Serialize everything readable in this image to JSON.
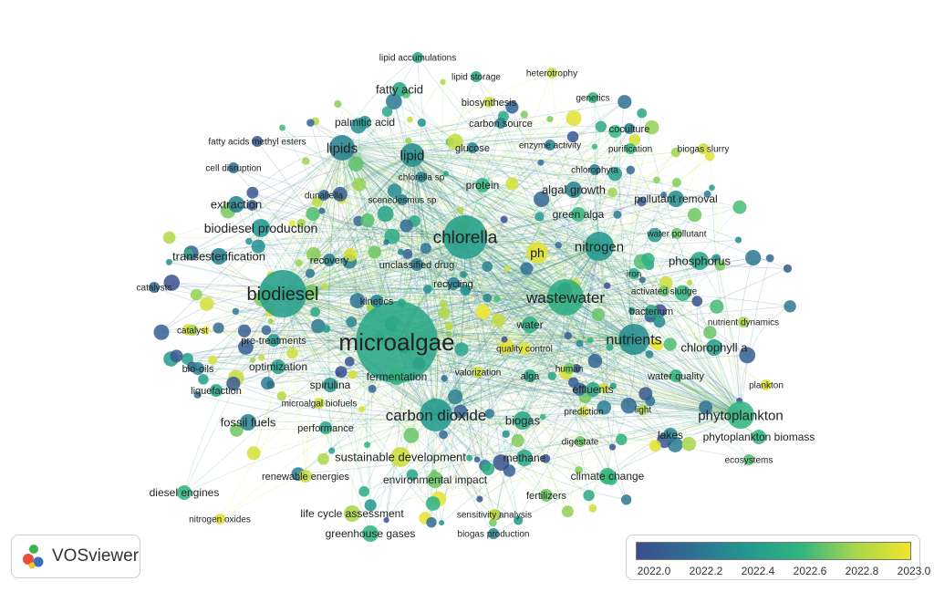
{
  "app": {
    "name": "VOSviewer",
    "logo_icon": "vosviewer-logo-icon"
  },
  "legend": {
    "ticks": [
      "2022.0",
      "2022.2",
      "2022.4",
      "2022.6",
      "2022.8",
      "2023.0"
    ],
    "colors": [
      "#3b4d8f",
      "#2f6e93",
      "#22988f",
      "#31b57f",
      "#a6d64b",
      "#f1e52a"
    ]
  },
  "keywords": [
    {
      "label": "microalgae",
      "year": 2022.5
    },
    {
      "label": "biodiesel",
      "year": 2022.45
    },
    {
      "label": "chlorella",
      "year": 2022.45
    },
    {
      "label": "wastewater",
      "year": 2022.55
    },
    {
      "label": "carbon dioxide",
      "year": 2022.4
    },
    {
      "label": "nutrients",
      "year": 2022.35
    },
    {
      "label": "phytoplankton",
      "year": 2022.6
    },
    {
      "label": "nitrogen",
      "year": 2022.4
    },
    {
      "label": "lipids",
      "year": 2022.3
    },
    {
      "label": "lipid",
      "year": 2022.35
    },
    {
      "label": "biodiesel production",
      "year": 2022.4
    },
    {
      "label": "fatty acid",
      "year": 2022.5
    },
    {
      "label": "palmitic acid",
      "year": 2022.4
    },
    {
      "label": "fatty acids methyl esters",
      "year": 2022.1
    },
    {
      "label": "cell disruption",
      "year": 2022.2
    },
    {
      "label": "extraction",
      "year": 2022.3
    },
    {
      "label": "transesterification",
      "year": 2022.3
    },
    {
      "label": "catalysts",
      "year": 2022.2
    },
    {
      "label": "catalyst",
      "year": 2022.8
    },
    {
      "label": "pre-treatments",
      "year": 2022.4
    },
    {
      "label": "bio-oils",
      "year": 2022.3
    },
    {
      "label": "optimization",
      "year": 2022.45
    },
    {
      "label": "liquefaction",
      "year": 2022.5
    },
    {
      "label": "fossil fuels",
      "year": 2022.3
    },
    {
      "label": "spirulina",
      "year": 2022.4
    },
    {
      "label": "microalgal biofuels",
      "year": 2022.9
    },
    {
      "label": "performance",
      "year": 2022.5
    },
    {
      "label": "fermentation",
      "year": 2022.6
    },
    {
      "label": "biogas",
      "year": 2022.5
    },
    {
      "label": "sustainable development",
      "year": 2022.9
    },
    {
      "label": "renewable energies",
      "year": 2022.9
    },
    {
      "label": "environmental impact",
      "year": 2022.7
    },
    {
      "label": "methane",
      "year": 2022.5
    },
    {
      "label": "diesel engines",
      "year": 2022.6
    },
    {
      "label": "nitrogen oxides",
      "year": 2022.95
    },
    {
      "label": "life cycle assessment",
      "year": 2022.8
    },
    {
      "label": "greenhouse gases",
      "year": 2022.6
    },
    {
      "label": "sensitivity analysis",
      "year": 2022.9
    },
    {
      "label": "biogas production",
      "year": 2022.3
    },
    {
      "label": "fertilizers",
      "year": 2022.7
    },
    {
      "label": "climate change",
      "year": 2022.6
    },
    {
      "label": "digestate",
      "year": 2022.7
    },
    {
      "label": "prediction",
      "year": 2022.9
    },
    {
      "label": "light",
      "year": 2022.8
    },
    {
      "label": "effluents",
      "year": 2022.5
    },
    {
      "label": "human",
      "year": 2022.7
    },
    {
      "label": "alga",
      "year": 2022.5
    },
    {
      "label": "valorization",
      "year": 2022.9
    },
    {
      "label": "quality control",
      "year": 2022.95
    },
    {
      "label": "water",
      "year": 2022.55
    },
    {
      "label": "recycling",
      "year": 2022.3
    },
    {
      "label": "kinetics",
      "year": 2022.3
    },
    {
      "label": "recovery",
      "year": 2022.3
    },
    {
      "label": "unclassified drug",
      "year": 2022.3
    },
    {
      "label": "ph",
      "year": 2022.95
    },
    {
      "label": "dunaliella",
      "year": 2022.2
    },
    {
      "label": "scenedesmus sp",
      "year": 2022.3
    },
    {
      "label": "chlorella sp",
      "year": 2022.3
    },
    {
      "label": "protein",
      "year": 2022.6
    },
    {
      "label": "glucose",
      "year": 2022.3
    },
    {
      "label": "carbon source",
      "year": 2022.3
    },
    {
      "label": "biosynthesis",
      "year": 2022.9
    },
    {
      "label": "lipid storage",
      "year": 2022.5
    },
    {
      "label": "lipid accumulations",
      "year": 2022.5
    },
    {
      "label": "heterotrophy",
      "year": 2022.9
    },
    {
      "label": "genetics",
      "year": 2022.6
    },
    {
      "label": "enzyme activity",
      "year": 2022.3
    },
    {
      "label": "coculture",
      "year": 2022.3
    },
    {
      "label": "purification",
      "year": 2022.6
    },
    {
      "label": "biogas slurry",
      "year": 2022.9
    },
    {
      "label": "chlorophyta",
      "year": 2022.3
    },
    {
      "label": "algal growth",
      "year": 2022.3
    },
    {
      "label": "green alga",
      "year": 2022.6
    },
    {
      "label": "pollutant removal",
      "year": 2022.35
    },
    {
      "label": "water pollutant",
      "year": 2022.7
    },
    {
      "label": "phosphorus",
      "year": 2022.5
    },
    {
      "label": "iron",
      "year": 2022.5
    },
    {
      "label": "activated sludge",
      "year": 2022.7
    },
    {
      "label": "bacterium",
      "year": 2022.5
    },
    {
      "label": "nutrient dynamics",
      "year": 2022.8
    },
    {
      "label": "chlorophyll a",
      "year": 2022.45
    },
    {
      "label": "water quality",
      "year": 2022.6
    },
    {
      "label": "plankton",
      "year": 2022.95
    },
    {
      "label": "lakes",
      "year": 2022.3
    },
    {
      "label": "phytoplankton biomass",
      "year": 2022.6
    },
    {
      "label": "ecosystems",
      "year": 2022.65
    }
  ]
}
